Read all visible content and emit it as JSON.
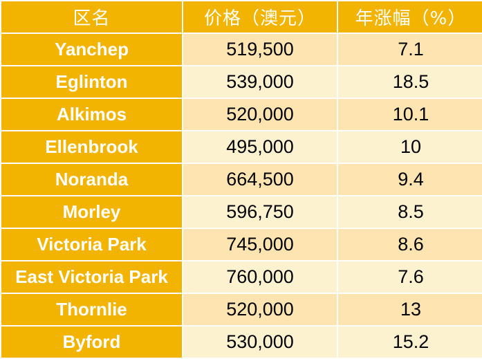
{
  "table": {
    "headers": [
      "区名",
      "价格（澳元）",
      "年涨幅（%）"
    ],
    "rows": [
      {
        "name": "Yanchep",
        "price": "519,500",
        "growth": "7.1"
      },
      {
        "name": "Eglinton",
        "price": "539,000",
        "growth": "18.5"
      },
      {
        "name": "Alkimos",
        "price": "520,000",
        "growth": "10.1"
      },
      {
        "name": "Ellenbrook",
        "price": "495,000",
        "growth": "10"
      },
      {
        "name": "Noranda",
        "price": "664,500",
        "growth": "9.4"
      },
      {
        "name": "Morley",
        "price": "596,750",
        "growth": "8.5"
      },
      {
        "name": "Victoria Park",
        "price": "745,000",
        "growth": "8.6"
      },
      {
        "name": "East Victoria Park",
        "price": "760,000",
        "growth": "7.6"
      },
      {
        "name": "Thornlie",
        "price": "520,000",
        "growth": "13"
      },
      {
        "name": "Byford",
        "price": "530,000",
        "growth": "15.2"
      }
    ]
  },
  "colors": {
    "header_bg": "#f2b400",
    "name_bg": "#f2b400",
    "row_odd_bg": "#fde4b0",
    "row_even_bg": "#fdf2d0",
    "header_text": "#ffffff"
  }
}
